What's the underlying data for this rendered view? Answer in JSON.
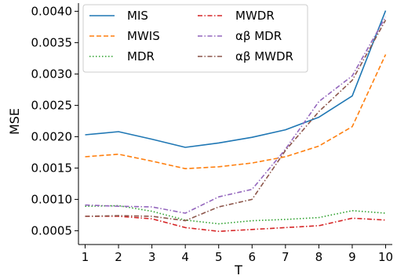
{
  "chart_data": {
    "type": "line",
    "xlabel": "T",
    "ylabel": "MSE",
    "x": [
      1,
      2,
      3,
      4,
      5,
      6,
      7,
      8,
      9,
      10
    ],
    "xlim": [
      0.8,
      10.2
    ],
    "ylim": [
      0.00028,
      0.00413
    ],
    "yticks": [
      "0.0005",
      "0.0010",
      "0.0015",
      "0.0020",
      "0.0025",
      "0.0030",
      "0.0035",
      "0.0040"
    ],
    "ytick_values": [
      0.0005,
      0.001,
      0.0015,
      0.002,
      0.0025,
      0.003,
      0.0035,
      0.004
    ],
    "xticks": [
      "1",
      "2",
      "3",
      "4",
      "5",
      "6",
      "7",
      "8",
      "9",
      "10"
    ],
    "grid": false,
    "legend_position": "top-left",
    "legend_columns": 2,
    "series": [
      {
        "name": "MIS",
        "color": "#1f77b4",
        "dash": "solid",
        "values": [
          0.00203,
          0.00208,
          0.00196,
          0.00183,
          0.0019,
          0.00199,
          0.00211,
          0.00231,
          0.00265,
          0.00401
        ]
      },
      {
        "name": "MWIS",
        "color": "#ff7f0e",
        "dash": "dashed",
        "values": [
          0.00168,
          0.00172,
          0.00161,
          0.00149,
          0.00152,
          0.00158,
          0.00168,
          0.00185,
          0.00216,
          0.00331
        ]
      },
      {
        "name": "MDR",
        "color": "#2ca02c",
        "dash": "dotted",
        "values": [
          0.00089,
          0.0009,
          0.00081,
          0.00067,
          0.00061,
          0.00066,
          0.00068,
          0.00071,
          0.00082,
          0.00078
        ]
      },
      {
        "name": "MWDR",
        "color": "#d62728",
        "dash": "dashdot",
        "values": [
          0.00073,
          0.00073,
          0.00069,
          0.00055,
          0.00049,
          0.00052,
          0.00055,
          0.00058,
          0.0007,
          0.00067
        ]
      },
      {
        "name": "αβ MDR",
        "color": "#9467bd",
        "dash": "dashdot",
        "values": [
          0.00091,
          0.00089,
          0.00088,
          0.00078,
          0.00104,
          0.00116,
          0.0018,
          0.00256,
          0.00297,
          0.00391
        ]
      },
      {
        "name": "αβ MWDR",
        "color": "#8c564b",
        "dash": "dashdot",
        "values": [
          0.00073,
          0.00074,
          0.00073,
          0.00066,
          0.00088,
          0.001,
          0.00178,
          0.0024,
          0.0029,
          0.00386
        ]
      }
    ]
  }
}
